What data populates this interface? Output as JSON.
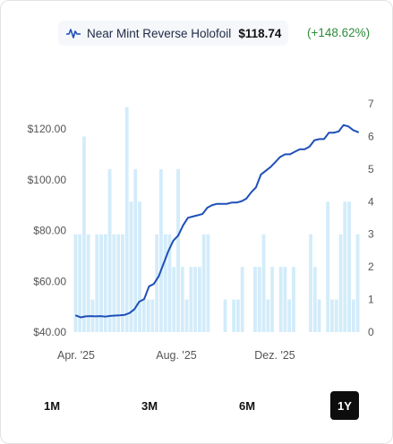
{
  "legend": {
    "name": "Near Mint Reverse Holofoil",
    "price": "$118.74",
    "change": "(+148.62%)",
    "icon": "line-chart-icon"
  },
  "ranges": [
    {
      "label": "1M",
      "active": false
    },
    {
      "label": "3M",
      "active": false
    },
    {
      "label": "6M",
      "active": false
    },
    {
      "label": "1Y",
      "active": true
    }
  ],
  "colors": {
    "line": "#1f4fb8",
    "bars": "#d3ecfa",
    "change_positive": "#2e8b3c",
    "active_button": "#0d0d0d"
  },
  "chart_data": {
    "type": "line",
    "title": "",
    "xlabel": "",
    "ylabel": "",
    "x_ticks": [
      "Apr. '25",
      "Aug. '25",
      "Dez. '25"
    ],
    "y_left": {
      "ticks": [
        "$40.00",
        "$60.00",
        "$80.00",
        "$100.00",
        "$120.00"
      ],
      "min": 40,
      "max": 130
    },
    "y_right": {
      "ticks": [
        "0",
        "1",
        "2",
        "3",
        "4",
        "5",
        "6",
        "7"
      ],
      "min": 0,
      "max": 7
    },
    "grid": false,
    "series": [
      {
        "name": "Near Mint Reverse Holofoil",
        "axis": "left",
        "kind": "line",
        "values": [
          46.5,
          45.8,
          46.2,
          46.3,
          46.2,
          46.3,
          46.1,
          46.4,
          46.5,
          46.6,
          46.8,
          47.5,
          49,
          52,
          53,
          58,
          59,
          62,
          67,
          72,
          76,
          78,
          82,
          85,
          85.5,
          86,
          86.5,
          89,
          90,
          90.5,
          90.5,
          90.5,
          91,
          91,
          91.5,
          92.5,
          95,
          97,
          102,
          103.5,
          105,
          107,
          109,
          110,
          110,
          111,
          112,
          112,
          113,
          115.5,
          116,
          116,
          118.5,
          118.5,
          119,
          121.5,
          121,
          119.5,
          118.74
        ]
      },
      {
        "name": "volume",
        "axis": "right",
        "kind": "bar",
        "values": [
          3,
          3,
          6,
          3,
          1,
          3,
          3,
          3,
          5,
          3,
          3,
          3,
          6.9,
          4,
          5,
          4,
          1,
          1,
          1,
          3,
          5,
          3,
          3,
          2,
          5,
          2,
          1,
          2,
          2,
          2,
          3,
          3,
          0,
          0,
          0,
          1,
          0,
          1,
          1,
          2,
          0,
          0,
          2,
          2,
          3,
          1,
          2,
          0,
          2,
          2,
          1,
          2,
          0,
          0,
          0,
          3,
          2,
          1,
          0,
          4,
          1,
          1,
          3,
          4,
          4,
          1,
          3
        ]
      }
    ]
  }
}
